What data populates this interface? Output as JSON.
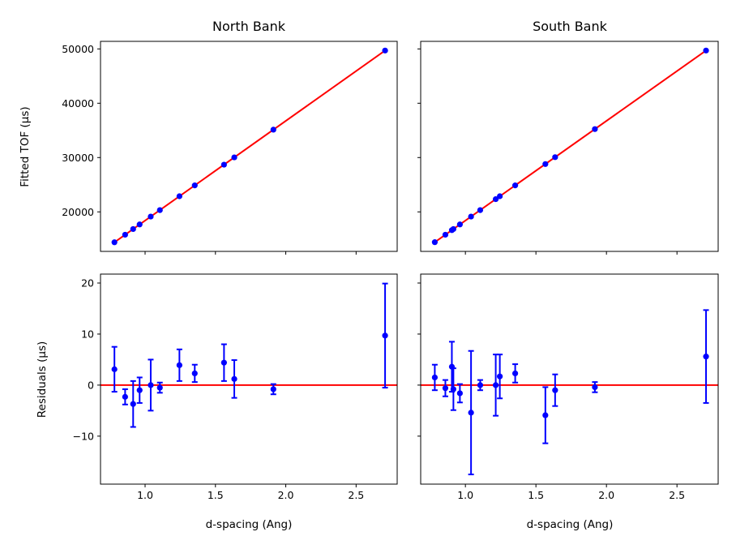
{
  "chart_data": [
    {
      "panel": "top-left",
      "type": "scatter+line",
      "title": "North Bank",
      "xlabel": "",
      "ylabel": "Fitted TOF (µs)",
      "xlim": [
        0.683,
        2.792
      ],
      "ylim": [
        12725,
        51390
      ],
      "xticks": [
        1.0,
        1.5,
        2.0,
        2.5
      ],
      "yticks": [
        20000,
        30000,
        40000,
        50000
      ],
      "show_xtick_labels": false,
      "show_ytick_labels": true,
      "fit": {
        "slope": 18347,
        "intercept": 52
      },
      "x": [
        0.782,
        0.858,
        0.915,
        0.961,
        1.04,
        1.105,
        1.244,
        1.353,
        1.561,
        1.634,
        1.912,
        2.706
      ]
    },
    {
      "panel": "top-right",
      "type": "scatter+line",
      "title": "South Bank",
      "xlabel": "",
      "ylabel": "",
      "xlim": [
        0.683,
        2.792
      ],
      "ylim": [
        12725,
        51390
      ],
      "xticks": [
        1.0,
        1.5,
        2.0,
        2.5
      ],
      "yticks": [
        20000,
        30000,
        40000,
        50000
      ],
      "show_xtick_labels": false,
      "show_ytick_labels": false,
      "fit": {
        "slope": 18347,
        "intercept": 52
      },
      "x": [
        0.783,
        0.858,
        0.904,
        0.915,
        0.961,
        1.04,
        1.105,
        1.215,
        1.244,
        1.353,
        1.567,
        1.636,
        1.918,
        2.706
      ]
    },
    {
      "panel": "bottom-left",
      "type": "errorbar",
      "title": "",
      "xlabel": "d-spacing (Ang)",
      "ylabel": "Residuals (µs)",
      "xlim": [
        0.683,
        2.792
      ],
      "ylim": [
        -19.4,
        21.75
      ],
      "xticks": [
        1.0,
        1.5,
        2.0,
        2.5
      ],
      "yticks": [
        -10,
        0,
        10,
        20
      ],
      "show_xtick_labels": true,
      "show_ytick_labels": true,
      "x": [
        0.782,
        0.858,
        0.915,
        0.961,
        1.04,
        1.105,
        1.244,
        1.353,
        1.561,
        1.634,
        1.912,
        2.706
      ],
      "y": [
        3.1,
        -2.3,
        -3.7,
        -1.0,
        0.0,
        -0.5,
        3.9,
        2.3,
        4.4,
        1.2,
        -0.8,
        9.7
      ],
      "yerr": [
        4.4,
        1.5,
        4.5,
        2.5,
        5.0,
        1.0,
        3.1,
        1.7,
        3.6,
        3.7,
        1.0,
        10.2
      ],
      "zero_line": 0
    },
    {
      "panel": "bottom-right",
      "type": "errorbar",
      "title": "",
      "xlabel": "d-spacing (Ang)",
      "ylabel": "",
      "xlim": [
        0.683,
        2.792
      ],
      "ylim": [
        -19.4,
        21.75
      ],
      "xticks": [
        1.0,
        1.5,
        2.0,
        2.5
      ],
      "yticks": [
        -10,
        0,
        10,
        20
      ],
      "show_xtick_labels": true,
      "show_ytick_labels": false,
      "x": [
        0.783,
        0.858,
        0.904,
        0.915,
        0.961,
        1.04,
        1.105,
        1.215,
        1.244,
        1.353,
        1.567,
        1.636,
        1.918,
        2.706
      ],
      "y": [
        1.5,
        -0.6,
        3.6,
        -0.8,
        -1.6,
        -5.4,
        0.0,
        0.0,
        1.7,
        2.3,
        -5.9,
        -1.0,
        -0.4,
        5.6
      ],
      "yerr": [
        2.5,
        1.6,
        4.9,
        4.1,
        1.8,
        12.1,
        1.0,
        6.0,
        4.3,
        1.8,
        5.5,
        3.1,
        1.0,
        9.1
      ],
      "zero_line": 0
    }
  ],
  "colors": {
    "points": "#0000ff",
    "line": "#ff0000",
    "axes": "#000000"
  }
}
